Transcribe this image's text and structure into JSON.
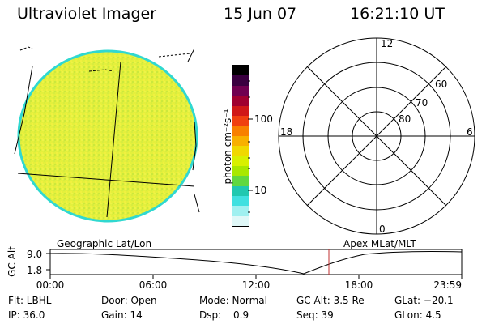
{
  "header": {
    "instrument": "Ultraviolet Imager",
    "date": "15 Jun 07",
    "time": "16:21:10 UT"
  },
  "colorbar": {
    "unit_label": "photon cm⁻²s⁻¹",
    "tick_100": "100",
    "tick_10": "10",
    "colors": [
      "#000000",
      "#3a0040",
      "#700050",
      "#a00030",
      "#d01818",
      "#f04010",
      "#f88000",
      "#f8b000",
      "#f0d800",
      "#d8f000",
      "#a8e800",
      "#60d840",
      "#20c8b0",
      "#40e0e0",
      "#a0f0f0",
      "#e0f8f8"
    ]
  },
  "globe": {
    "fill_color": "#e4f03c",
    "edge_color": "#30d8d0"
  },
  "polar": {
    "label_12": "12",
    "label_18": "18",
    "label_6": "6",
    "label_0": "0",
    "label_60": "60",
    "label_70": "70",
    "label_80": "80"
  },
  "orbit": {
    "left_label": "Geographic Lat/Lon",
    "right_label": "Apex  MLat/MLT",
    "axis_title": "GC Alt",
    "y_top": "9.0",
    "y_bottom": "1.8",
    "x_ticks": [
      "00:00",
      "06:00",
      "12:00",
      "18:00",
      "23:59"
    ],
    "marker_color": "#c03030"
  },
  "footer": {
    "flt": "Flt: LBHL",
    "ip": "IP: 36.0",
    "door": "Door: Open",
    "gain": "Gain: 14",
    "mode": "Mode: Normal",
    "dsp": "Dsp:",
    "dsp_value": "0.9",
    "gc_alt": "GC Alt: 3.5 Re",
    "seq": "Seq: 39",
    "glat": "GLat: −20.1",
    "glon": "GLon:   4.5"
  }
}
